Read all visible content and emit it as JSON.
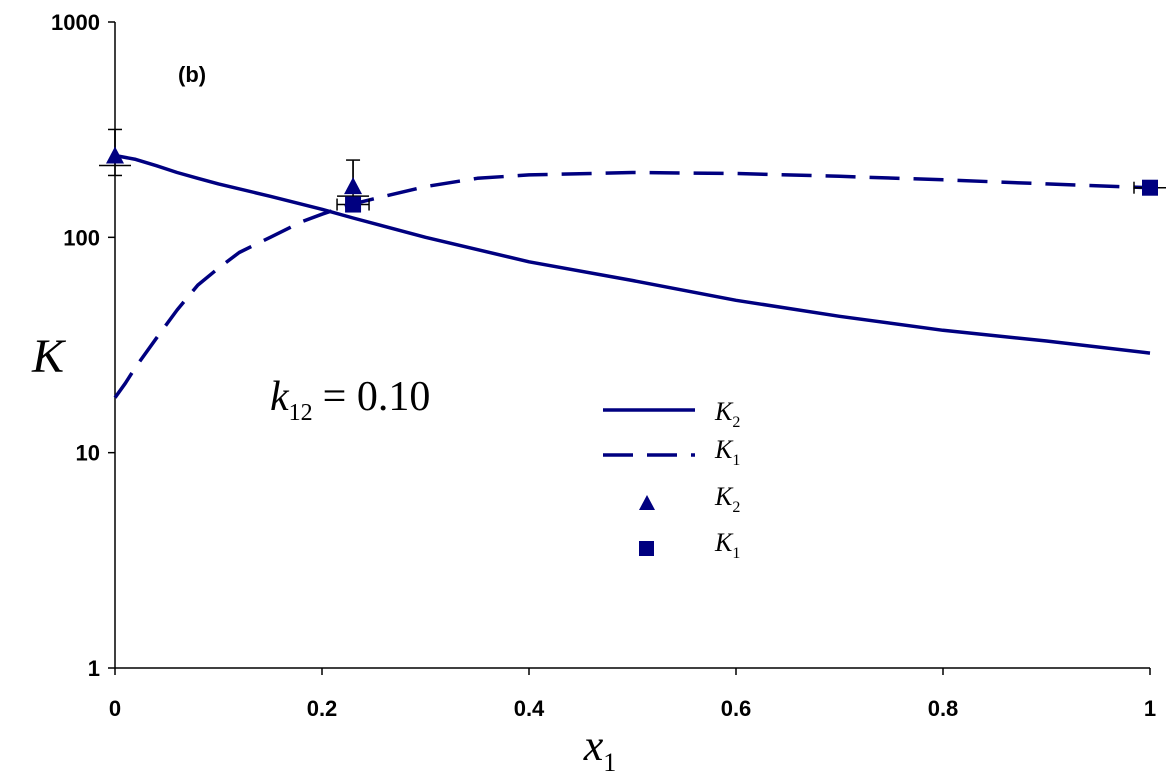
{
  "chart_data": {
    "type": "line",
    "panel_label": "(b)",
    "annotation": {
      "symbol": "k",
      "subscript": "12",
      "text": "= 0.10"
    },
    "xlabel": {
      "symbol": "x",
      "subscript": "1"
    },
    "ylabel": "K",
    "xlim": [
      0,
      1
    ],
    "ylim": [
      1,
      1000
    ],
    "yscale": "log",
    "x_ticks": [
      "0",
      "0.2",
      "0.4",
      "0.6",
      "0.8",
      "1"
    ],
    "y_ticks": [
      "1",
      "10",
      "100",
      "1000"
    ],
    "grid": false,
    "legend_position": "center-right",
    "series": [
      {
        "legend": {
          "symbol": "K",
          "subscript": "2"
        },
        "style": "solid",
        "x": [
          0,
          0.02,
          0.04,
          0.06,
          0.08,
          0.1,
          0.15,
          0.2,
          0.23,
          0.3,
          0.4,
          0.5,
          0.6,
          0.7,
          0.8,
          0.9,
          1.0
        ],
        "y": [
          240,
          230,
          215,
          200,
          188,
          177,
          155,
          135,
          123,
          100,
          77,
          63,
          51,
          43,
          37,
          33,
          29
        ]
      },
      {
        "legend": {
          "symbol": "K",
          "subscript": "1"
        },
        "style": "dashed",
        "x": [
          0,
          0.01,
          0.02,
          0.04,
          0.06,
          0.08,
          0.1,
          0.12,
          0.15,
          0.18,
          0.2,
          0.23,
          0.26,
          0.3,
          0.35,
          0.4,
          0.5,
          0.6,
          0.7,
          0.8,
          0.9,
          1.0
        ],
        "y": [
          18,
          21,
          25,
          34,
          46,
          60,
          72,
          85,
          100,
          118,
          128,
          143,
          155,
          172,
          188,
          195,
          200,
          198,
          192,
          185,
          177,
          170
        ]
      },
      {
        "legend": {
          "symbol": "K",
          "subscript": "2"
        },
        "style": "triangle",
        "x": [
          0,
          0.23
        ],
        "y": [
          240,
          173
        ]
      },
      {
        "legend": {
          "symbol": "K",
          "subscript": "1"
        },
        "style": "square",
        "x": [
          0.23,
          1.0
        ],
        "y": [
          142,
          170
        ]
      }
    ]
  }
}
